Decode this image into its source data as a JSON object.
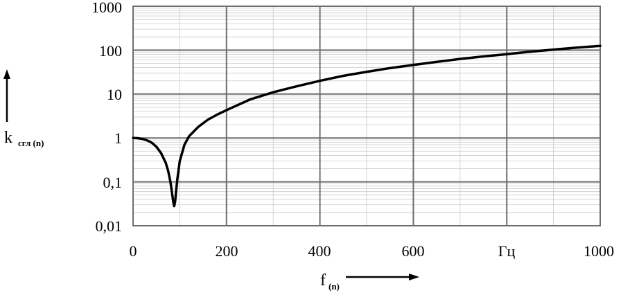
{
  "chart_data": {
    "type": "line",
    "title": "",
    "xlim": [
      0,
      1000
    ],
    "ylim": [
      0.01,
      1000
    ],
    "y_scale": "log",
    "grid": true,
    "x_ticks": [
      "0",
      "200",
      "400",
      "600",
      "Гц",
      "1000"
    ],
    "y_ticks": [
      "0,01",
      "0,1",
      "1",
      "10",
      "100",
      "1000"
    ],
    "xlabel_main": "f",
    "xlabel_sub": "(n)",
    "ylabel_main": "k",
    "ylabel_sub": "сгл (n)",
    "series": [
      {
        "color": "#000000",
        "points": [
          [
            0,
            1.0
          ],
          [
            10,
            0.99
          ],
          [
            20,
            0.95
          ],
          [
            30,
            0.88
          ],
          [
            40,
            0.78
          ],
          [
            50,
            0.63
          ],
          [
            60,
            0.45
          ],
          [
            70,
            0.27
          ],
          [
            75,
            0.18
          ],
          [
            80,
            0.1
          ],
          [
            84,
            0.05
          ],
          [
            86,
            0.035
          ],
          [
            88,
            0.028
          ],
          [
            90,
            0.035
          ],
          [
            92,
            0.06
          ],
          [
            95,
            0.12
          ],
          [
            100,
            0.3
          ],
          [
            110,
            0.7
          ],
          [
            120,
            1.1
          ],
          [
            140,
            1.8
          ],
          [
            160,
            2.6
          ],
          [
            180,
            3.4
          ],
          [
            200,
            4.3
          ],
          [
            250,
            7.5
          ],
          [
            300,
            11
          ],
          [
            350,
            15
          ],
          [
            400,
            20
          ],
          [
            450,
            26
          ],
          [
            500,
            32
          ],
          [
            550,
            39
          ],
          [
            600,
            46
          ],
          [
            650,
            54
          ],
          [
            700,
            63
          ],
          [
            750,
            72
          ],
          [
            800,
            81
          ],
          [
            850,
            92
          ],
          [
            900,
            103
          ],
          [
            950,
            114
          ],
          [
            1000,
            125
          ]
        ]
      }
    ]
  }
}
